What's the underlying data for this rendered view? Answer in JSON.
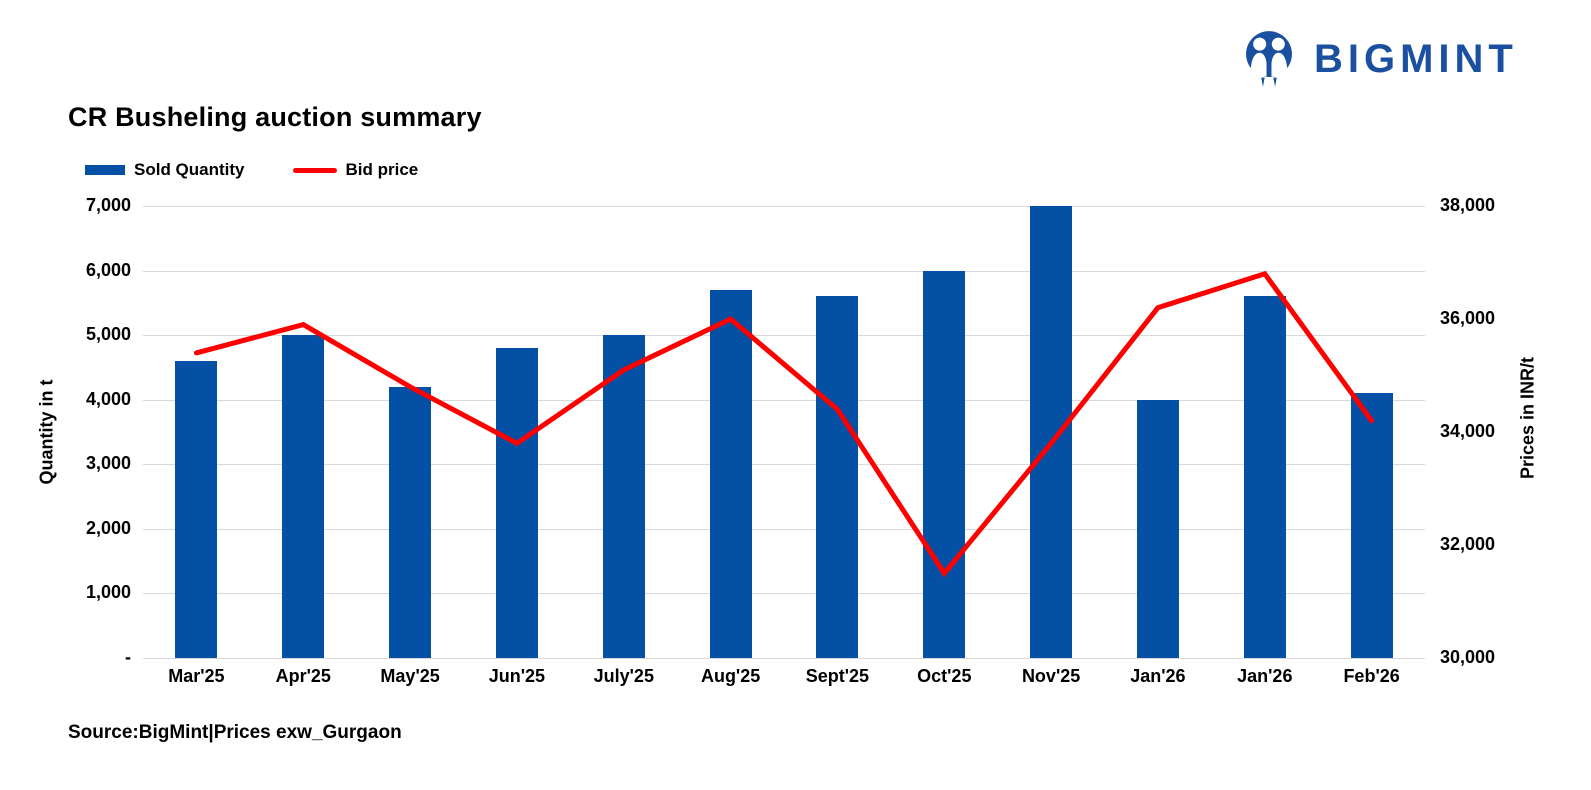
{
  "logo": {
    "brand": "BIGMINT",
    "color": "#1B4F9F",
    "icon": "bigmint-people-icon"
  },
  "title": "CR Busheling auction summary",
  "source_note": "Source:BigMint|Prices exw_Gurgaon",
  "colors": {
    "bar_blue": "#0450A4",
    "line_red": "#FF0000",
    "gridline_gray": "#D9D9D9",
    "text_black": "#000000"
  },
  "chart_data": {
    "type": "combo",
    "categories": [
      "Mar'25",
      "Apr'25",
      "May'25",
      "Jun'25",
      "July'25",
      "Aug'25",
      "Sept'25",
      "Oct'25",
      "Nov'25",
      "Jan'26",
      "Jan'26",
      "Feb'26"
    ],
    "series": [
      {
        "name": "Sold Quantity",
        "type": "bar",
        "axis": "left",
        "color": "#0450A4",
        "values": [
          4600,
          5000,
          4200,
          4800,
          5000,
          5700,
          5600,
          6000,
          7000,
          4000,
          5600,
          4100
        ]
      },
      {
        "name": "Bid price",
        "type": "line",
        "axis": "right",
        "color": "#FF0000",
        "values": [
          35400,
          35900,
          34800,
          33800,
          35100,
          36000,
          34400,
          31500,
          33800,
          36200,
          36800,
          34200
        ]
      }
    ],
    "left_axis": {
      "label": "Quantity in t",
      "min": 0,
      "max": 7000,
      "tick_step": 1000,
      "ticks": [
        "7,000",
        "6,000",
        "5,000",
        "4,000",
        "3,000",
        "2,000",
        "1,000",
        "-"
      ]
    },
    "right_axis": {
      "label": "Prices in INR/t",
      "min": 30000,
      "max": 38000,
      "tick_step": 2000,
      "ticks": [
        "38,000",
        "36,000",
        "34,000",
        "32,000",
        "30,000"
      ]
    },
    "grid": "horizontal",
    "legend_position": "top-left"
  }
}
